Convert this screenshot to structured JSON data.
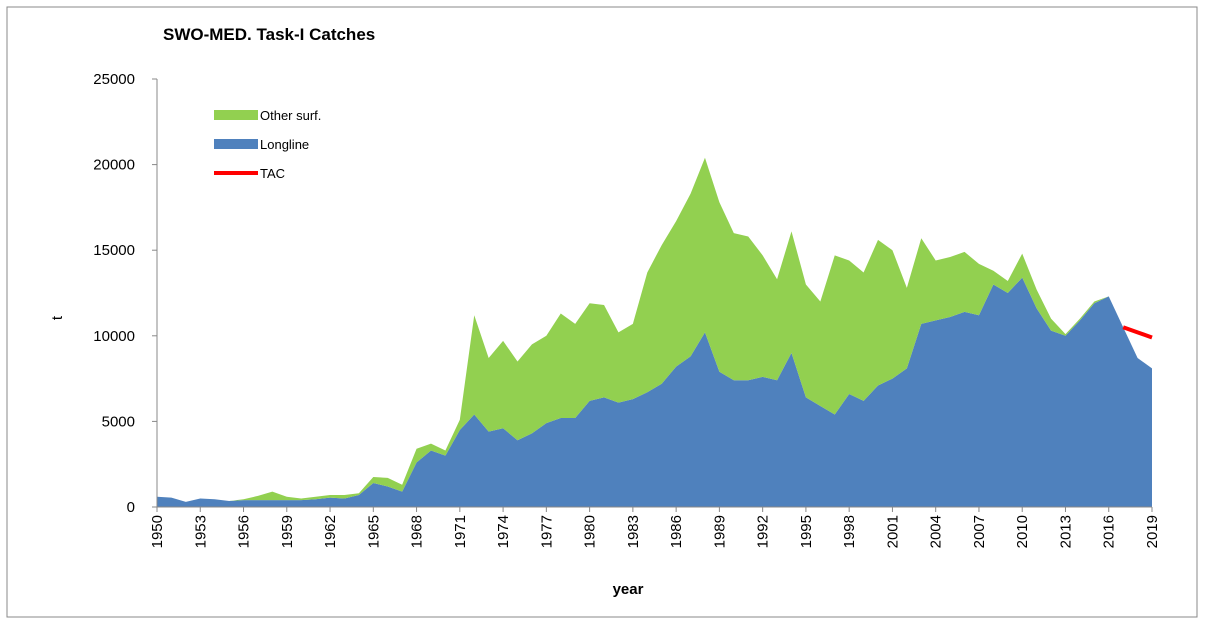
{
  "chart_data": {
    "type": "stacked_area",
    "title": "SWO-MED. Task-I Catches",
    "xlabel": "year",
    "ylabel": "t",
    "x": [
      1950,
      1951,
      1952,
      1953,
      1954,
      1955,
      1956,
      1957,
      1958,
      1959,
      1960,
      1961,
      1962,
      1963,
      1964,
      1965,
      1966,
      1967,
      1968,
      1969,
      1970,
      1971,
      1972,
      1973,
      1974,
      1975,
      1976,
      1977,
      1978,
      1979,
      1980,
      1981,
      1982,
      1983,
      1984,
      1985,
      1986,
      1987,
      1988,
      1989,
      1990,
      1991,
      1992,
      1993,
      1994,
      1995,
      1996,
      1997,
      1998,
      1999,
      2000,
      2001,
      2002,
      2003,
      2004,
      2005,
      2006,
      2007,
      2008,
      2009,
      2010,
      2011,
      2012,
      2013,
      2014,
      2015,
      2016,
      2017,
      2018,
      2019
    ],
    "series": [
      {
        "name": "Longline",
        "color": "#4f81bd",
        "values": [
          600,
          550,
          300,
          500,
          450,
          350,
          400,
          400,
          400,
          400,
          400,
          450,
          550,
          500,
          700,
          1400,
          1200,
          900,
          2600,
          3300,
          3000,
          4500,
          5400,
          4400,
          4600,
          3900,
          4300,
          4900,
          5200,
          5200,
          6200,
          6400,
          6100,
          6300,
          6700,
          7200,
          8200,
          8800,
          10200,
          7900,
          7400,
          7400,
          7600,
          7400,
          9000,
          6400,
          5900,
          5400,
          6600,
          6200,
          7100,
          7500,
          8100,
          10700,
          10900,
          11100,
          11400,
          11200,
          13000,
          12500,
          13400,
          11600,
          10300,
          10000,
          10900,
          11900,
          12300,
          10500,
          8700,
          8100
        ]
      },
      {
        "name": "Other surf.",
        "color": "#92d050",
        "values": [
          0,
          0,
          0,
          0,
          0,
          0,
          50,
          250,
          500,
          200,
          100,
          150,
          150,
          200,
          100,
          350,
          500,
          400,
          800,
          400,
          300,
          600,
          5800,
          4300,
          5100,
          4600,
          5200,
          5100,
          6100,
          5500,
          5700,
          5400,
          4100,
          4400,
          7000,
          8100,
          8500,
          9500,
          10200,
          9900,
          8600,
          8400,
          7100,
          5900,
          7100,
          6600,
          6100,
          9300,
          7800,
          7500,
          8500,
          7500,
          4700,
          5000,
          3500,
          3500,
          3500,
          3000,
          800,
          700,
          1400,
          1100,
          700,
          100,
          100,
          100,
          0,
          0,
          0,
          0
        ]
      },
      {
        "name": "TAC",
        "color": "#ff0000",
        "line": true,
        "values": [
          null,
          null,
          null,
          null,
          null,
          null,
          null,
          null,
          null,
          null,
          null,
          null,
          null,
          null,
          null,
          null,
          null,
          null,
          null,
          null,
          null,
          null,
          null,
          null,
          null,
          null,
          null,
          null,
          null,
          null,
          null,
          null,
          null,
          null,
          null,
          null,
          null,
          null,
          null,
          null,
          null,
          null,
          null,
          null,
          null,
          null,
          null,
          null,
          null,
          null,
          null,
          null,
          null,
          null,
          null,
          null,
          null,
          null,
          null,
          null,
          null,
          null,
          null,
          null,
          null,
          null,
          null,
          10500,
          10200,
          9900
        ]
      }
    ],
    "xlim": [
      1950,
      2019
    ],
    "xticks": [
      1950,
      1953,
      1956,
      1959,
      1962,
      1965,
      1968,
      1971,
      1974,
      1977,
      1980,
      1983,
      1986,
      1989,
      1992,
      1995,
      1998,
      2001,
      2004,
      2007,
      2010,
      2013,
      2016,
      2019
    ],
    "ylim": [
      0,
      25000
    ],
    "yticks": [
      0,
      5000,
      10000,
      15000,
      20000,
      25000
    ],
    "grid": false,
    "legend": "upper left"
  }
}
